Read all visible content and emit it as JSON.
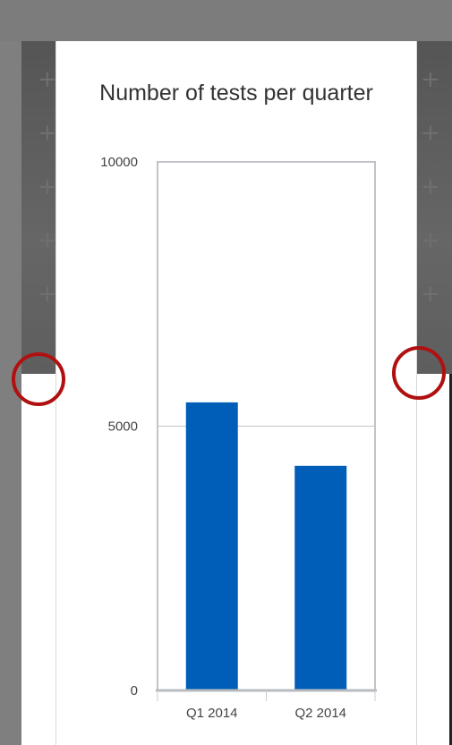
{
  "chart_data": {
    "type": "bar",
    "title": "Number of tests per quarter",
    "categories": [
      "Q1 2014",
      "Q2 2014"
    ],
    "values": [
      5450,
      4250
    ],
    "ylim": [
      0,
      10000
    ],
    "yticks": [
      "0",
      "5000",
      "10000"
    ],
    "xlabel": "",
    "ylabel": "",
    "grid": true,
    "bar_color": "#005eb8"
  },
  "colors": {
    "marker": "#b01010",
    "gridline": "#c0c4c8"
  }
}
